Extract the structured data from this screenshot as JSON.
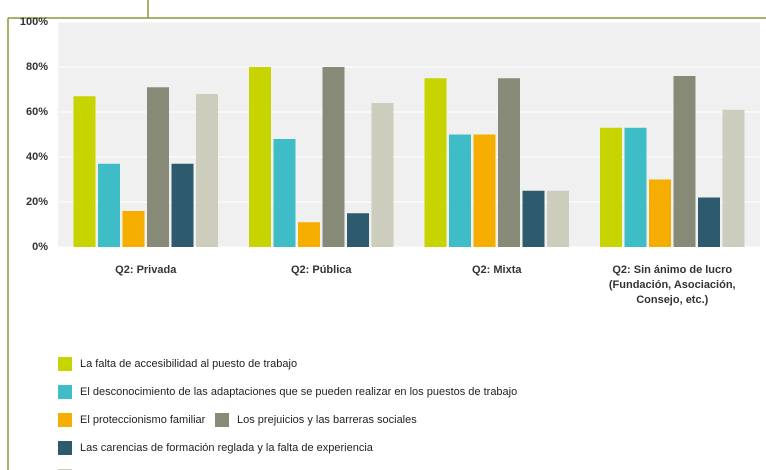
{
  "chart_data": {
    "type": "bar",
    "categories": [
      "Q2: Privada",
      "Q2: Pública",
      "Q2: Mixta",
      "Q2: Sin ánimo de lucro (Fundación, Asociación, Consejo, etc.)"
    ],
    "series": [
      {
        "name": "La falta de accesibilidad al puesto de trabajo",
        "color": "#c8d400",
        "values": [
          67,
          80,
          75,
          53
        ]
      },
      {
        "name": "El desconocimiento de las adaptaciones que se pueden realizar en los puestos de trabajo",
        "color": "#3fbdc6",
        "values": [
          37,
          48,
          50,
          53
        ]
      },
      {
        "name": "El proteccionismo familiar",
        "color": "#f5ad00",
        "values": [
          16,
          11,
          50,
          30
        ]
      },
      {
        "name": "Los prejuicios y las barreras sociales",
        "color": "#888a78",
        "values": [
          71,
          80,
          75,
          76
        ]
      },
      {
        "name": "Las carencias de formación reglada y la falta de experiencia",
        "color": "#2e5a6e",
        "values": [
          37,
          15,
          25,
          22
        ]
      },
      {
        "color": "#cdcdbd",
        "values": [
          68,
          64,
          25,
          61
        ]
      }
    ],
    "ylim": [
      0,
      100
    ],
    "yticks": [
      {
        "value": 0,
        "label": "0%"
      },
      {
        "value": 20,
        "label": "20%"
      },
      {
        "value": 40,
        "label": "40%"
      },
      {
        "value": 60,
        "label": "60%"
      },
      {
        "value": 80,
        "label": "80%"
      },
      {
        "value": 100,
        "label": "100%"
      }
    ],
    "grid": true
  }
}
